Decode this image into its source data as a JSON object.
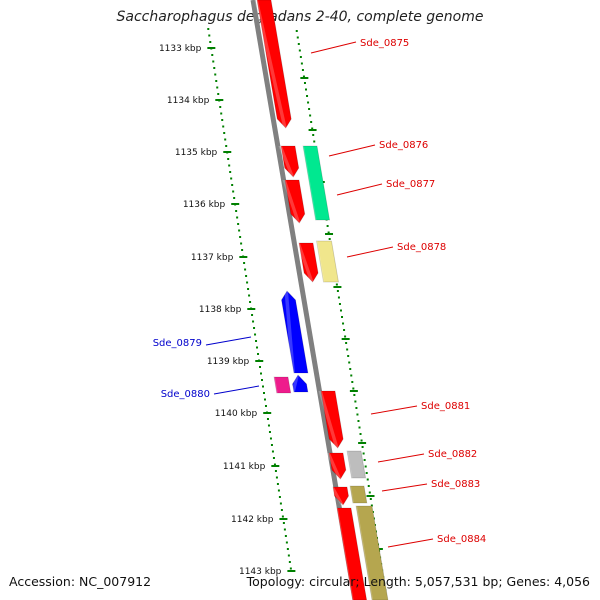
{
  "title": "Saccharophagus degradans 2-40, complete genome",
  "accession_text": "Accession: NC_007912",
  "stats_text": "Topology: circular; Length: 5,057,531 bp; Genes: 4,056",
  "kbp_labels": [
    "1133 kbp",
    "1134 kbp",
    "1135 kbp",
    "1136 kbp",
    "1137 kbp",
    "1138 kbp",
    "1139 kbp",
    "1140 kbp",
    "1141 kbp",
    "1142 kbp",
    "1143 kbp"
  ],
  "colors": {
    "red": "#ff0000",
    "blue": "#0000ff",
    "green": "#00e890",
    "yellow": "#f0e68c",
    "magenta": "#ee1c8c",
    "gray": "#bdbdbd",
    "olive": "#b5a64f",
    "axis": "#808080",
    "ticks": "#008000",
    "label_red": "#dd0000",
    "label_blue": "#0000cc"
  },
  "gene_labels": [
    {
      "name": "Sde_0875",
      "color": "red"
    },
    {
      "name": "Sde_0876",
      "color": "red"
    },
    {
      "name": "Sde_0877",
      "color": "red"
    },
    {
      "name": "Sde_0878",
      "color": "red"
    },
    {
      "name": "Sde_0879",
      "color": "blue"
    },
    {
      "name": "Sde_0880",
      "color": "blue"
    },
    {
      "name": "Sde_0881",
      "color": "red"
    },
    {
      "name": "Sde_0882",
      "color": "red"
    },
    {
      "name": "Sde_0883",
      "color": "red"
    },
    {
      "name": "Sde_0884",
      "color": "red"
    }
  ]
}
